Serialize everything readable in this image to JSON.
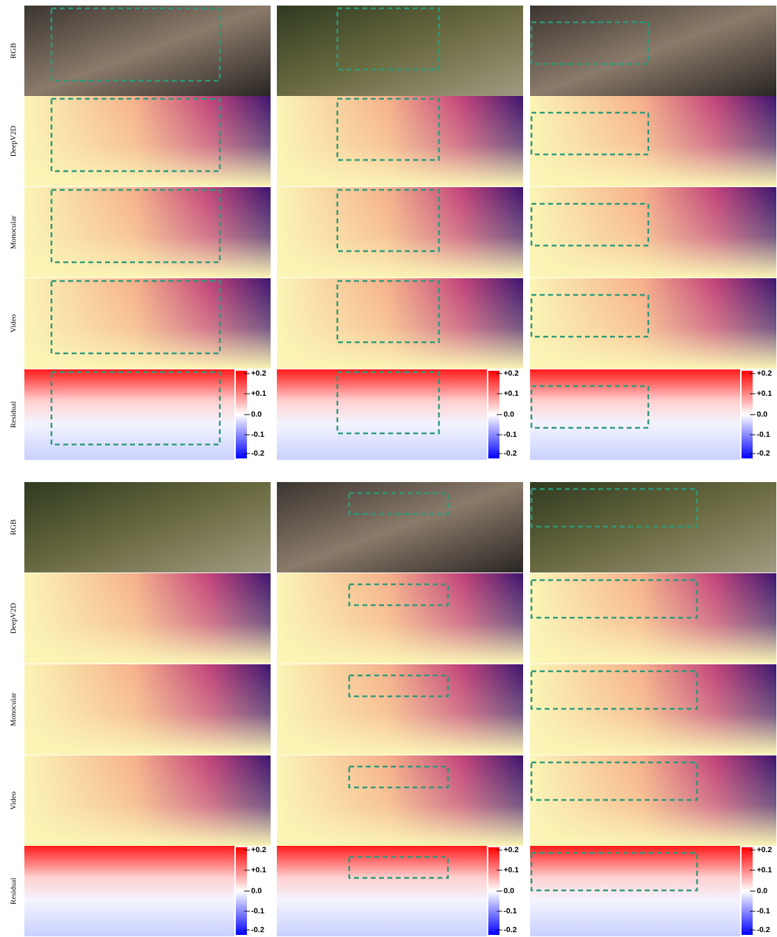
{
  "row_labels": [
    "RGB",
    "DeepV2D",
    "Monocular",
    "Video",
    "Residual"
  ],
  "colorbar_ticks": [
    "+0.2",
    "+0.1",
    "0.0",
    "-0.1",
    "-0.2"
  ]
}
